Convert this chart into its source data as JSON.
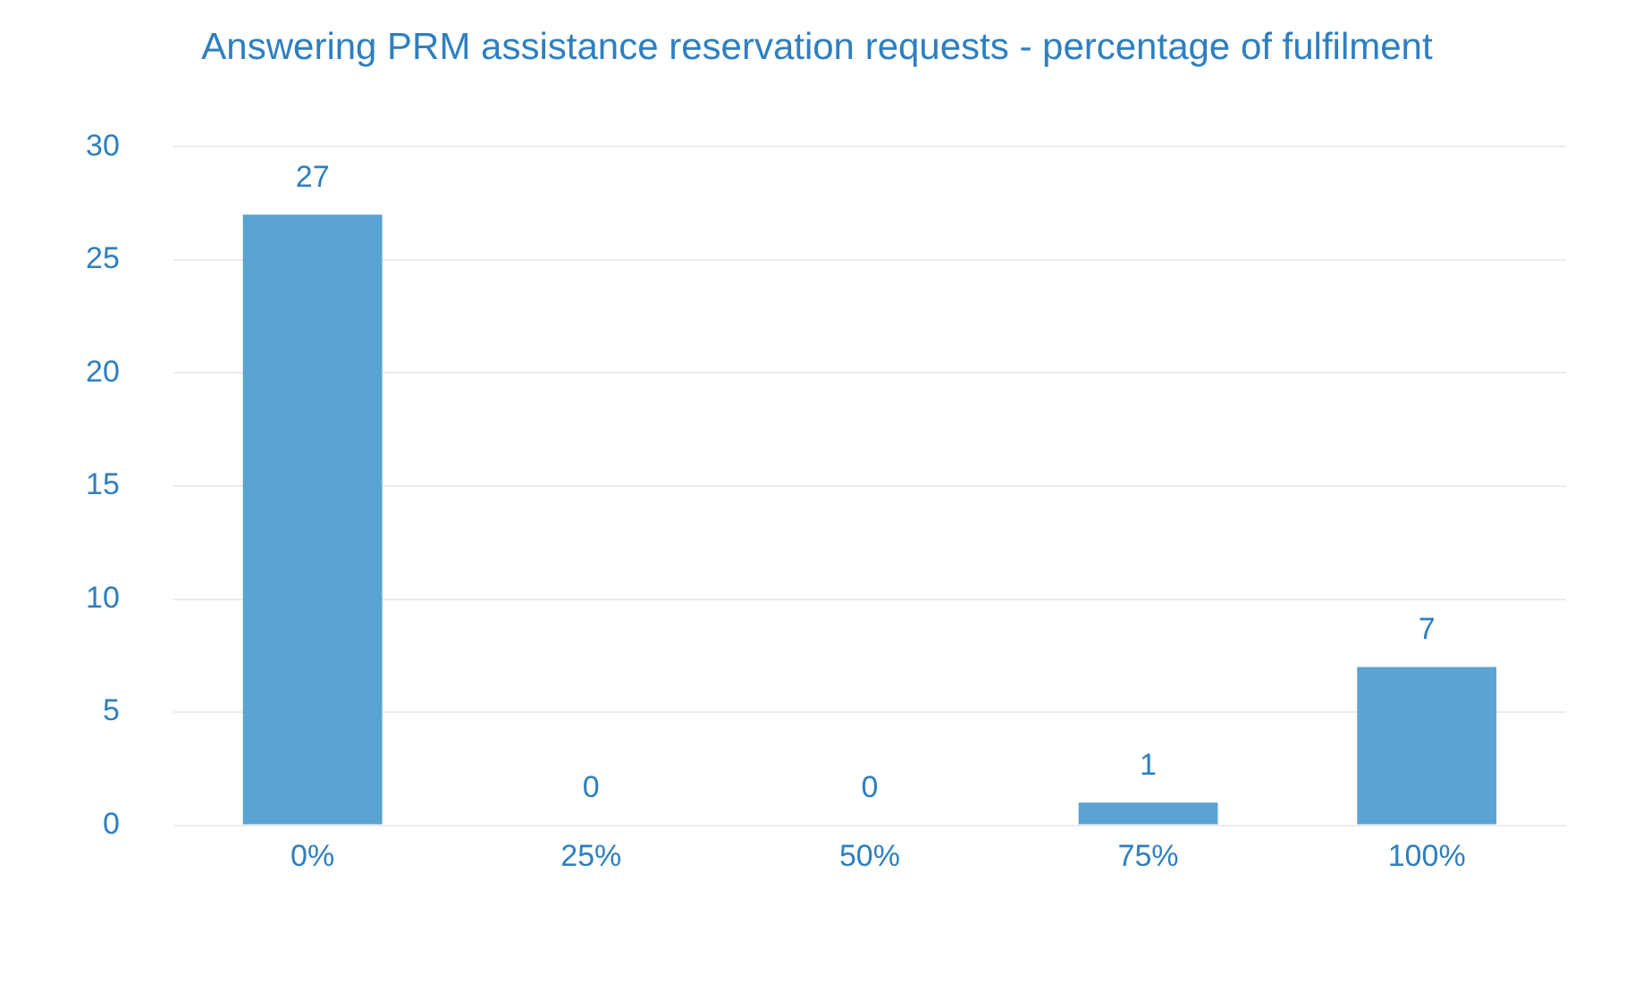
{
  "chart_data": {
    "type": "bar",
    "title": "Answering PRM assistance reservation requests - percentage of fulfilment",
    "categories": [
      "0%",
      "25%",
      "50%",
      "75%",
      "100%"
    ],
    "values": [
      27,
      0,
      0,
      1,
      7
    ],
    "color": "#5aa3d3",
    "ylim": [
      0,
      30
    ],
    "yticks": [
      0,
      5,
      10,
      15,
      20,
      25,
      30
    ],
    "grid": "y",
    "data_labels": true,
    "legend": false
  }
}
